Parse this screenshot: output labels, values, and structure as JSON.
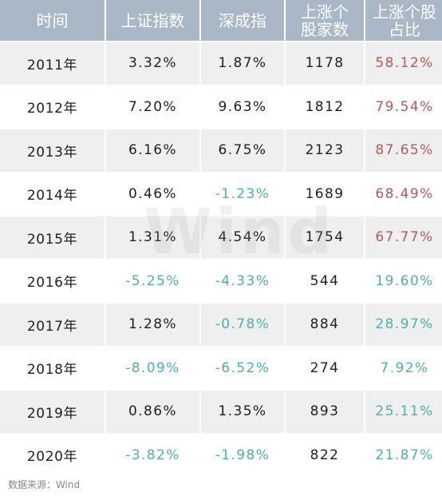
{
  "table": {
    "headers": [
      "时间",
      "上证指数",
      "深成指",
      "上涨个股家数",
      "上涨个股占比"
    ],
    "rows": [
      {
        "year": "2011年",
        "sh": "3.32%",
        "sz": "1.87%",
        "count": "1178",
        "ratio": "58.12%"
      },
      {
        "year": "2012年",
        "sh": "7.20%",
        "sz": "9.63%",
        "count": "1812",
        "ratio": "79.54%"
      },
      {
        "year": "2013年",
        "sh": "6.16%",
        "sz": "6.75%",
        "count": "2123",
        "ratio": "87.65%"
      },
      {
        "year": "2014年",
        "sh": "0.46%",
        "sz": "-1.23%",
        "count": "1689",
        "ratio": "68.49%"
      },
      {
        "year": "2015年",
        "sh": "1.31%",
        "sz": "4.54%",
        "count": "1754",
        "ratio": "67.77%"
      },
      {
        "year": "2016年",
        "sh": "-5.25%",
        "sz": "-4.33%",
        "count": "544",
        "ratio": "19.60%"
      },
      {
        "year": "2017年",
        "sh": "1.28%",
        "sz": "-0.78%",
        "count": "884",
        "ratio": "28.97%"
      },
      {
        "year": "2018年",
        "sh": "-8.09%",
        "sz": "-6.52%",
        "count": "274",
        "ratio": "7.92%"
      },
      {
        "year": "2019年",
        "sh": "0.86%",
        "sz": "1.35%",
        "count": "893",
        "ratio": "25.11%"
      },
      {
        "year": "2020年",
        "sh": "-3.82%",
        "sz": "-1.98%",
        "count": "822",
        "ratio": "21.87%"
      }
    ]
  },
  "watermark": "Wind",
  "source": "数据来源：Wind",
  "colors": {
    "header_bg": "#a9b7c6",
    "row_alt_bg": "#efefef",
    "positive_ratio": "#b45a5a",
    "negative_or_low": "#4fb0a8"
  }
}
